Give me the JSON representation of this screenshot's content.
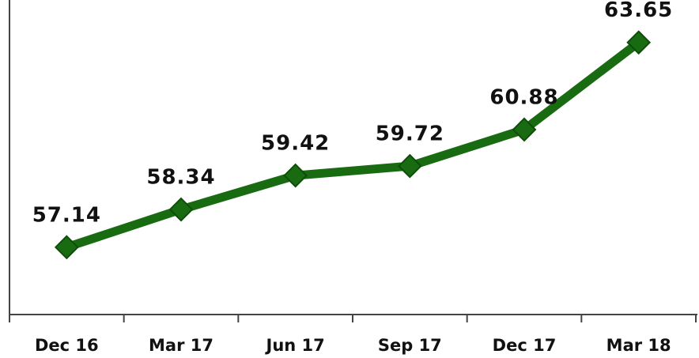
{
  "chart_data": {
    "type": "line",
    "categories": [
      "Dec 16",
      "Mar 17",
      "Jun 17",
      "Sep 17",
      "Dec 17",
      "Mar 18"
    ],
    "values": [
      57.14,
      58.34,
      59.42,
      59.72,
      60.88,
      63.65
    ],
    "color": "#196b12",
    "ylim": [
      55,
      65
    ]
  }
}
